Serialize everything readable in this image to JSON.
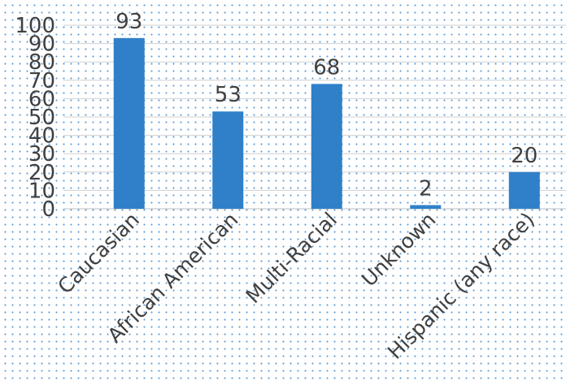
{
  "chart_data": {
    "type": "bar",
    "title": "",
    "xlabel": "",
    "ylabel": "",
    "categories": [
      "Caucasian",
      "African American",
      "Multi-Racial",
      "Unknown",
      "Hispanic (any race)"
    ],
    "values": [
      93,
      53,
      68,
      2,
      20
    ],
    "data_labels": [
      "93",
      "53",
      "68",
      "2",
      "20"
    ],
    "ylim": [
      0,
      100
    ],
    "yticks": [
      "0",
      "10",
      "20",
      "30",
      "40",
      "50",
      "60",
      "70",
      "80",
      "90",
      "100"
    ],
    "grid": true,
    "legend": "none",
    "bar_color": "#2f80c8"
  }
}
